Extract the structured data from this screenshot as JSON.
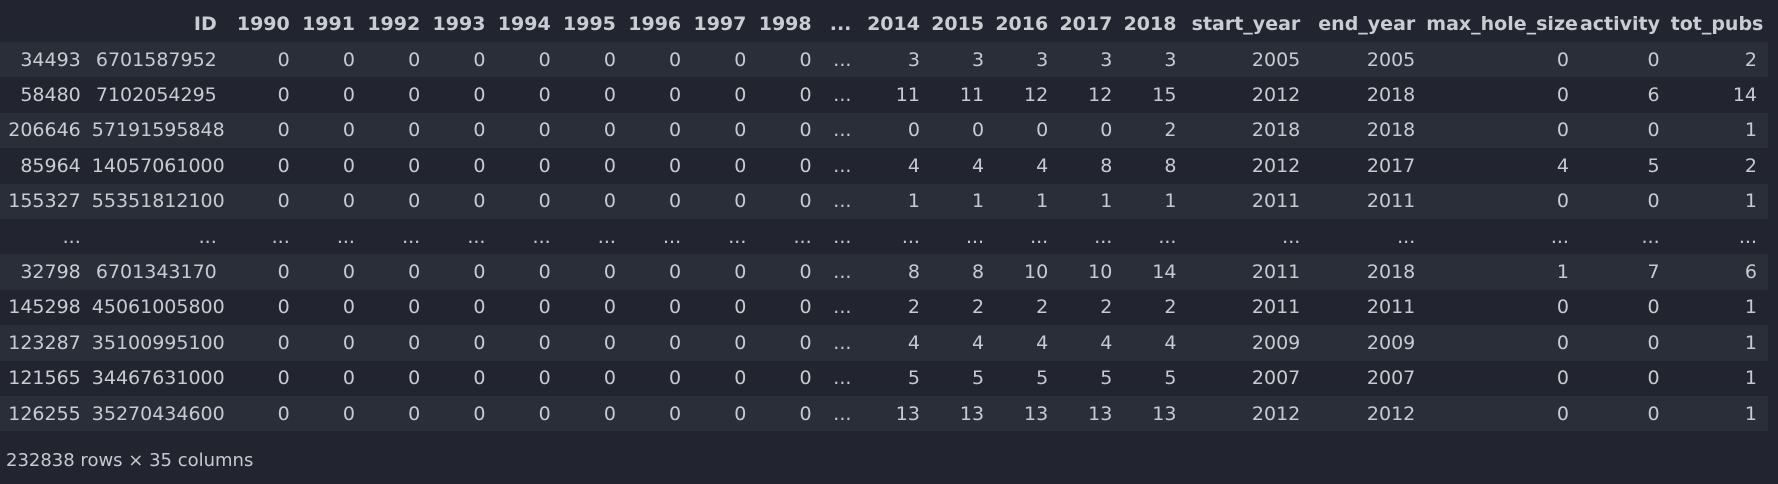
{
  "table": {
    "columns": [
      "",
      "ID",
      "1990",
      "1991",
      "1992",
      "1993",
      "1994",
      "1995",
      "1996",
      "1997",
      "1998",
      "...",
      "2014",
      "2015",
      "2016",
      "2017",
      "2018",
      "start_year",
      "end_year",
      "max_hole_size",
      "activity",
      "tot_pubs"
    ],
    "rows": [
      [
        "34493",
        "6701587952",
        "0",
        "0",
        "0",
        "0",
        "0",
        "0",
        "0",
        "0",
        "0",
        "...",
        "3",
        "3",
        "3",
        "3",
        "3",
        "2005",
        "2005",
        "0",
        "0",
        "2"
      ],
      [
        "58480",
        "7102054295",
        "0",
        "0",
        "0",
        "0",
        "0",
        "0",
        "0",
        "0",
        "0",
        "...",
        "11",
        "11",
        "12",
        "12",
        "15",
        "2012",
        "2018",
        "0",
        "6",
        "14"
      ],
      [
        "206646",
        "57191595848",
        "0",
        "0",
        "0",
        "0",
        "0",
        "0",
        "0",
        "0",
        "0",
        "...",
        "0",
        "0",
        "0",
        "0",
        "2",
        "2018",
        "2018",
        "0",
        "0",
        "1"
      ],
      [
        "85964",
        "14057061000",
        "0",
        "0",
        "0",
        "0",
        "0",
        "0",
        "0",
        "0",
        "0",
        "...",
        "4",
        "4",
        "4",
        "8",
        "8",
        "2012",
        "2017",
        "4",
        "5",
        "2"
      ],
      [
        "155327",
        "55351812100",
        "0",
        "0",
        "0",
        "0",
        "0",
        "0",
        "0",
        "0",
        "0",
        "...",
        "1",
        "1",
        "1",
        "1",
        "1",
        "2011",
        "2011",
        "0",
        "0",
        "1"
      ],
      [
        "...",
        "...",
        "...",
        "...",
        "...",
        "...",
        "...",
        "...",
        "...",
        "...",
        "...",
        "...",
        "...",
        "...",
        "...",
        "...",
        "...",
        "...",
        "...",
        "...",
        "...",
        "..."
      ],
      [
        "32798",
        "6701343170",
        "0",
        "0",
        "0",
        "0",
        "0",
        "0",
        "0",
        "0",
        "0",
        "...",
        "8",
        "8",
        "10",
        "10",
        "14",
        "2011",
        "2018",
        "1",
        "7",
        "6"
      ],
      [
        "145298",
        "45061005800",
        "0",
        "0",
        "0",
        "0",
        "0",
        "0",
        "0",
        "0",
        "0",
        "...",
        "2",
        "2",
        "2",
        "2",
        "2",
        "2011",
        "2011",
        "0",
        "0",
        "1"
      ],
      [
        "123287",
        "35100995100",
        "0",
        "0",
        "0",
        "0",
        "0",
        "0",
        "0",
        "0",
        "0",
        "...",
        "4",
        "4",
        "4",
        "4",
        "4",
        "2009",
        "2009",
        "0",
        "0",
        "1"
      ],
      [
        "121565",
        "34467631000",
        "0",
        "0",
        "0",
        "0",
        "0",
        "0",
        "0",
        "0",
        "0",
        "...",
        "5",
        "5",
        "5",
        "5",
        "5",
        "2007",
        "2007",
        "0",
        "0",
        "1"
      ],
      [
        "126255",
        "35270434600",
        "0",
        "0",
        "0",
        "0",
        "0",
        "0",
        "0",
        "0",
        "0",
        "...",
        "13",
        "13",
        "13",
        "13",
        "13",
        "2012",
        "2012",
        "0",
        "0",
        "1"
      ]
    ]
  },
  "footer": {
    "shape_text": "232838 rows × 35 columns"
  },
  "colors": {
    "background": "#22252f",
    "row_stripe": "#2a2e39",
    "text": "#c7cad1"
  }
}
